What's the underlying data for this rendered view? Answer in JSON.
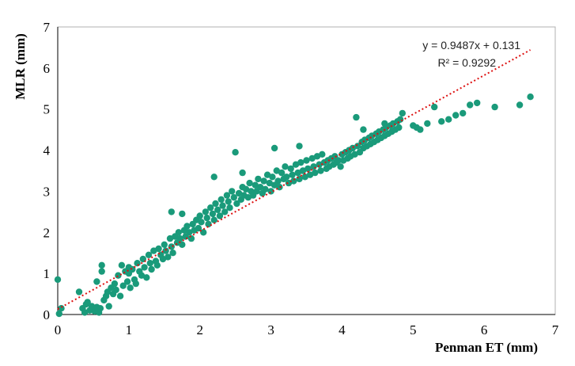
{
  "chart_data": {
    "type": "scatter",
    "xlabel": "Penman ET (mm)",
    "ylabel": "MLR  (mm)",
    "xlim": [
      0,
      7
    ],
    "ylim": [
      0,
      7
    ],
    "x_ticks": [
      "0",
      "1",
      "2",
      "3",
      "4",
      "5",
      "6",
      "7"
    ],
    "y_ticks": [
      "0",
      "1",
      "2",
      "3",
      "4",
      "5",
      "6",
      "7"
    ],
    "grid": false,
    "point_color": "#1a9a7a",
    "trendline": {
      "slope": 0.9487,
      "intercept": 0.131,
      "x_range": [
        0,
        6.65
      ],
      "color": "#dd1111",
      "style": "dotted",
      "equation_label": "y = 0.9487x + 0.131",
      "r2_label": "R² = 0.9292"
    },
    "series": [
      {
        "points": [
          [
            0.0,
            0.85
          ],
          [
            0.02,
            0.02
          ],
          [
            0.05,
            0.15
          ],
          [
            0.3,
            0.55
          ],
          [
            0.35,
            0.15
          ],
          [
            0.38,
            0.05
          ],
          [
            0.4,
            0.25
          ],
          [
            0.42,
            0.3
          ],
          [
            0.45,
            0.1
          ],
          [
            0.48,
            0.2
          ],
          [
            0.5,
            0.12
          ],
          [
            0.52,
            0.08
          ],
          [
            0.55,
            0.18
          ],
          [
            0.58,
            0.05
          ],
          [
            0.6,
            0.15
          ],
          [
            0.62,
            1.2
          ],
          [
            0.65,
            0.35
          ],
          [
            0.68,
            0.45
          ],
          [
            0.7,
            0.55
          ],
          [
            0.72,
            0.2
          ],
          [
            0.75,
            0.65
          ],
          [
            0.78,
            0.5
          ],
          [
            0.8,
            0.75
          ],
          [
            0.82,
            0.6
          ],
          [
            0.85,
            0.95
          ],
          [
            0.88,
            0.45
          ],
          [
            0.9,
            1.2
          ],
          [
            0.92,
            0.7
          ],
          [
            0.95,
            1.05
          ],
          [
            0.98,
            0.8
          ],
          [
            1.0,
            1.0
          ],
          [
            1.0,
            1.15
          ],
          [
            1.02,
            0.65
          ],
          [
            1.05,
            1.1
          ],
          [
            1.08,
            0.85
          ],
          [
            1.1,
            0.75
          ],
          [
            1.12,
            1.25
          ],
          [
            1.15,
            1.05
          ],
          [
            1.18,
            0.95
          ],
          [
            1.2,
            1.35
          ],
          [
            1.22,
            1.15
          ],
          [
            1.25,
            0.9
          ],
          [
            1.28,
            1.45
          ],
          [
            1.3,
            1.25
          ],
          [
            1.32,
            1.1
          ],
          [
            1.35,
            1.55
          ],
          [
            1.38,
            1.3
          ],
          [
            1.4,
            1.2
          ],
          [
            1.42,
            1.6
          ],
          [
            1.45,
            1.45
          ],
          [
            1.48,
            1.35
          ],
          [
            1.5,
            1.7
          ],
          [
            1.52,
            1.55
          ],
          [
            1.55,
            1.4
          ],
          [
            1.58,
            1.85
          ],
          [
            1.6,
            1.65
          ],
          [
            1.62,
            1.5
          ],
          [
            1.65,
            1.9
          ],
          [
            1.68,
            1.75
          ],
          [
            1.7,
            2.0
          ],
          [
            1.72,
            1.85
          ],
          [
            1.75,
            1.7
          ],
          [
            1.78,
            2.05
          ],
          [
            1.8,
            1.9
          ],
          [
            1.82,
            2.15
          ],
          [
            1.85,
            2.0
          ],
          [
            1.88,
            1.85
          ],
          [
            1.9,
            2.2
          ],
          [
            1.92,
            2.05
          ],
          [
            1.95,
            2.3
          ],
          [
            1.98,
            2.1
          ],
          [
            2.0,
            2.4
          ],
          [
            2.02,
            2.25
          ],
          [
            2.05,
            2.0
          ],
          [
            2.08,
            2.5
          ],
          [
            2.1,
            2.35
          ],
          [
            2.12,
            2.2
          ],
          [
            2.15,
            2.6
          ],
          [
            2.18,
            2.45
          ],
          [
            2.2,
            2.3
          ],
          [
            2.22,
            2.7
          ],
          [
            2.25,
            2.55
          ],
          [
            2.28,
            2.4
          ],
          [
            2.3,
            2.8
          ],
          [
            2.32,
            2.65
          ],
          [
            2.35,
            2.5
          ],
          [
            2.38,
            2.9
          ],
          [
            2.4,
            2.75
          ],
          [
            2.42,
            2.6
          ],
          [
            2.45,
            3.0
          ],
          [
            2.48,
            2.85
          ],
          [
            2.5,
            3.95
          ],
          [
            2.52,
            2.7
          ],
          [
            2.55,
            2.95
          ],
          [
            2.58,
            2.8
          ],
          [
            2.6,
            3.1
          ],
          [
            2.62,
            2.9
          ],
          [
            2.65,
            3.05
          ],
          [
            2.68,
            2.85
          ],
          [
            2.7,
            3.2
          ],
          [
            2.72,
            3.0
          ],
          [
            2.75,
            2.9
          ],
          [
            2.78,
            3.15
          ],
          [
            2.8,
            3.0
          ],
          [
            2.82,
            3.3
          ],
          [
            2.85,
            3.1
          ],
          [
            2.88,
            2.95
          ],
          [
            2.9,
            3.25
          ],
          [
            2.92,
            3.05
          ],
          [
            2.95,
            3.4
          ],
          [
            2.98,
            3.2
          ],
          [
            3.0,
            3.0
          ],
          [
            3.02,
            3.35
          ],
          [
            3.05,
            3.15
          ],
          [
            3.08,
            3.5
          ],
          [
            3.1,
            3.25
          ],
          [
            3.12,
            3.1
          ],
          [
            3.15,
            3.45
          ],
          [
            3.18,
            3.3
          ],
          [
            3.2,
            3.6
          ],
          [
            3.22,
            3.35
          ],
          [
            3.25,
            3.2
          ],
          [
            3.28,
            3.55
          ],
          [
            3.3,
            3.4
          ],
          [
            3.32,
            3.25
          ],
          [
            3.35,
            3.65
          ],
          [
            3.38,
            3.45
          ],
          [
            3.4,
            3.3
          ],
          [
            3.42,
            3.7
          ],
          [
            3.45,
            3.5
          ],
          [
            3.48,
            3.35
          ],
          [
            3.5,
            3.75
          ],
          [
            3.52,
            3.55
          ],
          [
            3.55,
            3.4
          ],
          [
            3.58,
            3.8
          ],
          [
            3.6,
            3.6
          ],
          [
            3.62,
            3.45
          ],
          [
            3.65,
            3.85
          ],
          [
            3.68,
            3.65
          ],
          [
            3.7,
            3.5
          ],
          [
            3.72,
            3.9
          ],
          [
            3.75,
            3.7
          ],
          [
            3.78,
            3.55
          ],
          [
            3.8,
            3.75
          ],
          [
            3.82,
            3.6
          ],
          [
            3.85,
            3.8
          ],
          [
            3.88,
            3.65
          ],
          [
            3.9,
            3.85
          ],
          [
            3.92,
            3.7
          ],
          [
            3.95,
            3.75
          ],
          [
            3.98,
            3.6
          ],
          [
            4.0,
            3.9
          ],
          [
            4.02,
            3.75
          ],
          [
            4.05,
            3.95
          ],
          [
            4.08,
            3.8
          ],
          [
            4.1,
            4.0
          ],
          [
            4.12,
            3.85
          ],
          [
            4.15,
            4.05
          ],
          [
            4.18,
            3.9
          ],
          [
            4.2,
            4.8
          ],
          [
            4.22,
            4.1
          ],
          [
            4.25,
            3.95
          ],
          [
            4.28,
            4.2
          ],
          [
            4.3,
            4.05
          ],
          [
            4.32,
            4.25
          ],
          [
            4.35,
            4.1
          ],
          [
            4.38,
            4.3
          ],
          [
            4.4,
            4.15
          ],
          [
            4.42,
            4.35
          ],
          [
            4.45,
            4.2
          ],
          [
            4.48,
            4.4
          ],
          [
            4.5,
            4.25
          ],
          [
            4.52,
            4.45
          ],
          [
            4.55,
            4.3
          ],
          [
            4.58,
            4.5
          ],
          [
            4.6,
            4.35
          ],
          [
            4.62,
            4.55
          ],
          [
            4.65,
            4.4
          ],
          [
            4.68,
            4.6
          ],
          [
            4.7,
            4.45
          ],
          [
            4.72,
            4.65
          ],
          [
            4.75,
            4.5
          ],
          [
            4.78,
            4.7
          ],
          [
            4.8,
            4.55
          ],
          [
            4.82,
            4.75
          ],
          [
            4.85,
            4.9
          ],
          [
            5.0,
            4.6
          ],
          [
            5.05,
            4.55
          ],
          [
            5.1,
            4.5
          ],
          [
            5.2,
            4.65
          ],
          [
            5.3,
            5.05
          ],
          [
            5.4,
            4.7
          ],
          [
            5.5,
            4.75
          ],
          [
            5.6,
            4.85
          ],
          [
            5.7,
            4.9
          ],
          [
            5.8,
            5.1
          ],
          [
            5.9,
            5.15
          ],
          [
            6.15,
            5.05
          ],
          [
            6.5,
            5.1
          ],
          [
            6.65,
            5.3
          ],
          [
            1.6,
            2.5
          ],
          [
            1.75,
            2.45
          ],
          [
            2.2,
            3.35
          ],
          [
            2.6,
            3.45
          ],
          [
            3.4,
            4.1
          ],
          [
            3.05,
            4.05
          ],
          [
            4.3,
            4.5
          ],
          [
            4.6,
            4.65
          ],
          [
            0.62,
            1.05
          ],
          [
            0.55,
            0.8
          ]
        ]
      }
    ]
  }
}
